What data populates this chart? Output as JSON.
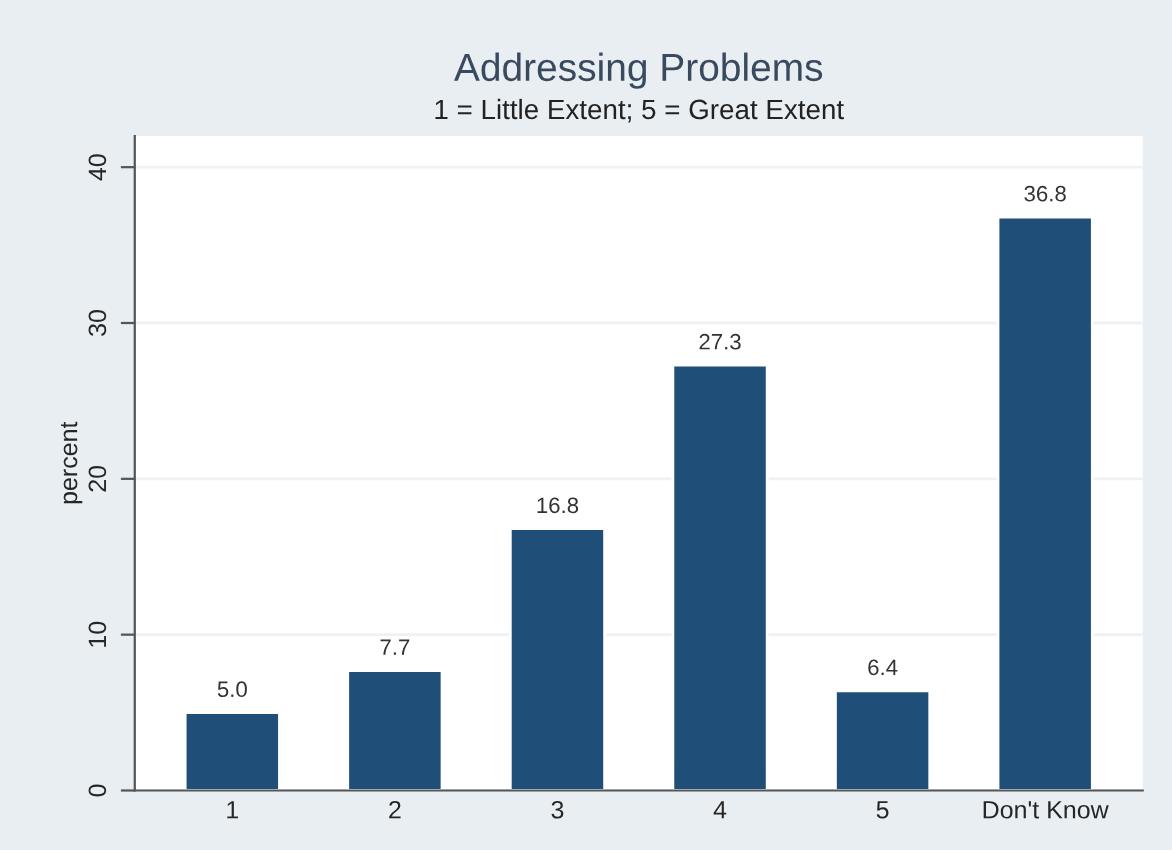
{
  "chart_data": {
    "type": "bar",
    "title": "Addressing Problems",
    "subtitle": "1 = Little Extent; 5 = Great Extent",
    "ylabel": "percent",
    "categories": [
      "1",
      "2",
      "3",
      "4",
      "5",
      "Don't Know"
    ],
    "values": [
      5.0,
      7.7,
      16.8,
      27.3,
      6.4,
      36.8
    ],
    "value_labels": [
      "5.0",
      "7.7",
      "16.8",
      "27.3",
      "6.4",
      "36.8"
    ],
    "color": "#1f4e79",
    "ylim": [
      0,
      42
    ],
    "yticks": [
      0,
      10,
      20,
      30,
      40
    ],
    "grid": "y"
  }
}
